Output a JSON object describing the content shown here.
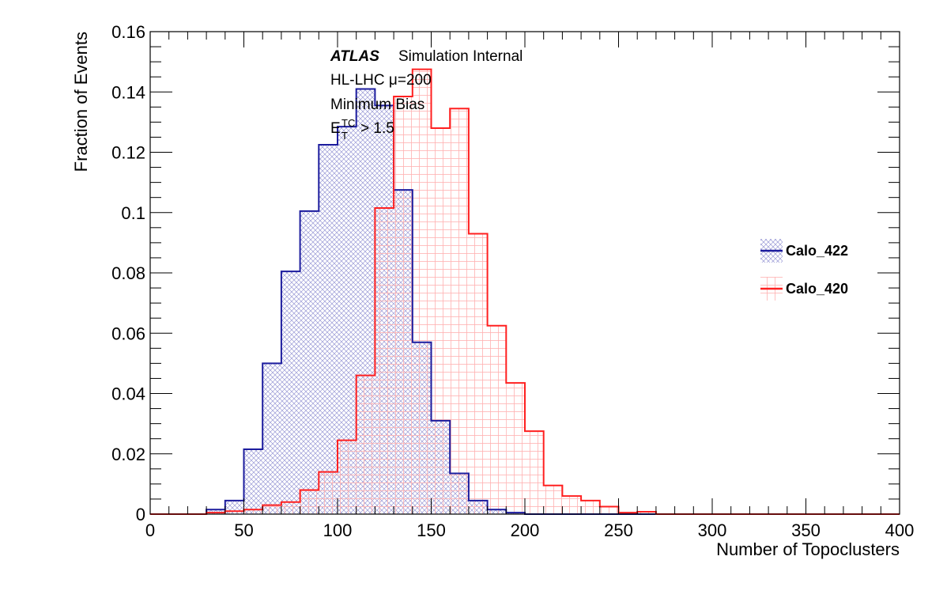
{
  "chart_data": {
    "type": "histogram",
    "xlabel": "Number of Topoclusters",
    "ylabel": "Fraction of Events",
    "xlim": [
      0,
      400
    ],
    "ylim": [
      0,
      0.16
    ],
    "bin_width": 10,
    "x_ticks": [
      "0",
      "50",
      "100",
      "150",
      "200",
      "250",
      "300",
      "350",
      "400"
    ],
    "y_ticks": [
      "0",
      "0.02",
      "0.04",
      "0.06",
      "0.08",
      "0.1",
      "0.12",
      "0.14",
      "0.16"
    ],
    "legend_position": "right",
    "annotations": {
      "atlas": "ATLAS",
      "atlas_suffix": "Simulation Internal",
      "line2": "HL-LHC μ=200",
      "line3": "Minimum Bias",
      "et_E": "E",
      "et_sup": "TC",
      "et_sub": "T",
      "et_rest": "> 1.5"
    },
    "series": [
      {
        "name": "Calo_422",
        "color": "#1c1c9e",
        "fill_pattern": "crosshatch-blue",
        "bin_edges": [
          30,
          40,
          50,
          60,
          70,
          80,
          90,
          100,
          110,
          120,
          130,
          140,
          150,
          160,
          170,
          180,
          190,
          200
        ],
        "values": [
          0.0015,
          0.0045,
          0.0215,
          0.05,
          0.0805,
          0.1005,
          0.1225,
          0.1285,
          0.141,
          0.1355,
          0.1075,
          0.057,
          0.031,
          0.0135,
          0.0045,
          0.0015,
          0.0005
        ]
      },
      {
        "name": "Calo_420",
        "color": "#ff2020",
        "fill_pattern": "grid-red",
        "bin_edges": [
          30,
          40,
          50,
          60,
          70,
          80,
          90,
          100,
          110,
          120,
          130,
          140,
          150,
          160,
          170,
          180,
          190,
          200,
          210,
          220,
          230,
          240,
          250,
          260,
          270
        ],
        "values": [
          0.0005,
          0.001,
          0.0015,
          0.003,
          0.004,
          0.008,
          0.014,
          0.0245,
          0.046,
          0.1015,
          0.1385,
          0.1475,
          0.128,
          0.1345,
          0.093,
          0.0625,
          0.0435,
          0.0275,
          0.0095,
          0.006,
          0.0045,
          0.0025,
          0.0005,
          0.0008
        ]
      }
    ]
  }
}
